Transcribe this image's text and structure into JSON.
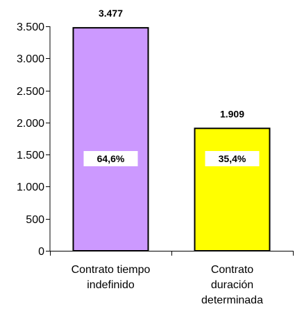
{
  "chart_data": {
    "type": "bar",
    "categories": [
      [
        "Contrato tiempo",
        "indefinido"
      ],
      [
        "Contrato",
        "duración",
        "determinada"
      ]
    ],
    "values": [
      3477,
      1909
    ],
    "value_labels": [
      "3.477",
      "1.909"
    ],
    "percent_labels": [
      "64,6%",
      "35,4%"
    ],
    "bar_colors": [
      "#cc99ff",
      "#ffff00"
    ],
    "ylim": [
      0,
      3500
    ],
    "yticks": [
      0,
      500,
      1000,
      1500,
      2000,
      2500,
      3000,
      3500
    ],
    "ytick_labels": [
      "0",
      "500",
      "1.000",
      "1.500",
      "2.000",
      "2.500",
      "3.000",
      "3.500"
    ],
    "title": "",
    "xlabel": "",
    "ylabel": "",
    "grid": false,
    "legend": "none"
  }
}
